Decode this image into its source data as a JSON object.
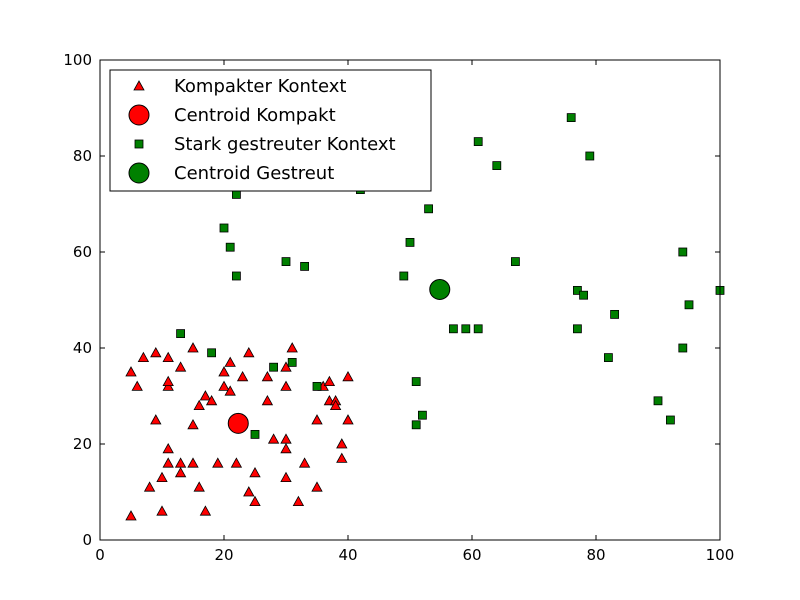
{
  "chart_data": {
    "type": "scatter",
    "xlim": [
      0,
      100
    ],
    "ylim": [
      0,
      100
    ],
    "xticks": [
      0,
      20,
      40,
      60,
      80,
      100
    ],
    "yticks": [
      0,
      20,
      40,
      60,
      80,
      100
    ],
    "grid": false,
    "legend_placement": "top-left",
    "series": [
      {
        "name": "Kompakter Kontext",
        "marker": "triangle",
        "color": "#ff0000",
        "points": [
          [
            5,
            35
          ],
          [
            6,
            32
          ],
          [
            7,
            38
          ],
          [
            9,
            39
          ],
          [
            11,
            38
          ],
          [
            13,
            36
          ],
          [
            15,
            40
          ],
          [
            21,
            37
          ],
          [
            24,
            39
          ],
          [
            31,
            40
          ],
          [
            8,
            11
          ],
          [
            9,
            25
          ],
          [
            10,
            13
          ],
          [
            10,
            6
          ],
          [
            11,
            19
          ],
          [
            11,
            16
          ],
          [
            11,
            32
          ],
          [
            11,
            33
          ],
          [
            13,
            16
          ],
          [
            13,
            14
          ],
          [
            15,
            16
          ],
          [
            15,
            24
          ],
          [
            16,
            11
          ],
          [
            16,
            28
          ],
          [
            17,
            30
          ],
          [
            17,
            6
          ],
          [
            18,
            29
          ],
          [
            19,
            16
          ],
          [
            20,
            35
          ],
          [
            20,
            32
          ],
          [
            21,
            31
          ],
          [
            22,
            16
          ],
          [
            23,
            34
          ],
          [
            24,
            10
          ],
          [
            25,
            14
          ],
          [
            25,
            8
          ],
          [
            27,
            29
          ],
          [
            27,
            34
          ],
          [
            28,
            21
          ],
          [
            30,
            36
          ],
          [
            30,
            32
          ],
          [
            30,
            21
          ],
          [
            30,
            19
          ],
          [
            30,
            13
          ],
          [
            32,
            8
          ],
          [
            33,
            16
          ],
          [
            35,
            25
          ],
          [
            35,
            11
          ],
          [
            36,
            32
          ],
          [
            37,
            33
          ],
          [
            37,
            29
          ],
          [
            38,
            29
          ],
          [
            38,
            28
          ],
          [
            39,
            20
          ],
          [
            39,
            17
          ],
          [
            40,
            34
          ],
          [
            40,
            25
          ],
          [
            5,
            5
          ]
        ]
      },
      {
        "name": "Centroid Kompakt",
        "marker": "circle",
        "color": "#ff0000",
        "points": [
          [
            22.3,
            24.3
          ]
        ]
      },
      {
        "name": "Stark gestreuter Kontext",
        "marker": "square",
        "color": "#008000",
        "points": [
          [
            13,
            43
          ],
          [
            18,
            39
          ],
          [
            20,
            65
          ],
          [
            21,
            61
          ],
          [
            22,
            55
          ],
          [
            22,
            72
          ],
          [
            25,
            22
          ],
          [
            28,
            36
          ],
          [
            30,
            58
          ],
          [
            31,
            37
          ],
          [
            33,
            57
          ],
          [
            35,
            32
          ],
          [
            42,
            73
          ],
          [
            49,
            55
          ],
          [
            50,
            62
          ],
          [
            51,
            33
          ],
          [
            51,
            24
          ],
          [
            52,
            26
          ],
          [
            53,
            69
          ],
          [
            57,
            44
          ],
          [
            59,
            44
          ],
          [
            61,
            44
          ],
          [
            61,
            83
          ],
          [
            64,
            78
          ],
          [
            67,
            58
          ],
          [
            76,
            88
          ],
          [
            77,
            52
          ],
          [
            77,
            44
          ],
          [
            78,
            51
          ],
          [
            79,
            80
          ],
          [
            82,
            38
          ],
          [
            83,
            47
          ],
          [
            90,
            29
          ],
          [
            92,
            25
          ],
          [
            94,
            60
          ],
          [
            94,
            40
          ],
          [
            95,
            49
          ],
          [
            100,
            52
          ]
        ]
      },
      {
        "name": "Centroid Gestreut",
        "marker": "circle",
        "color": "#008000",
        "points": [
          [
            54.8,
            52.2
          ]
        ]
      }
    ]
  }
}
